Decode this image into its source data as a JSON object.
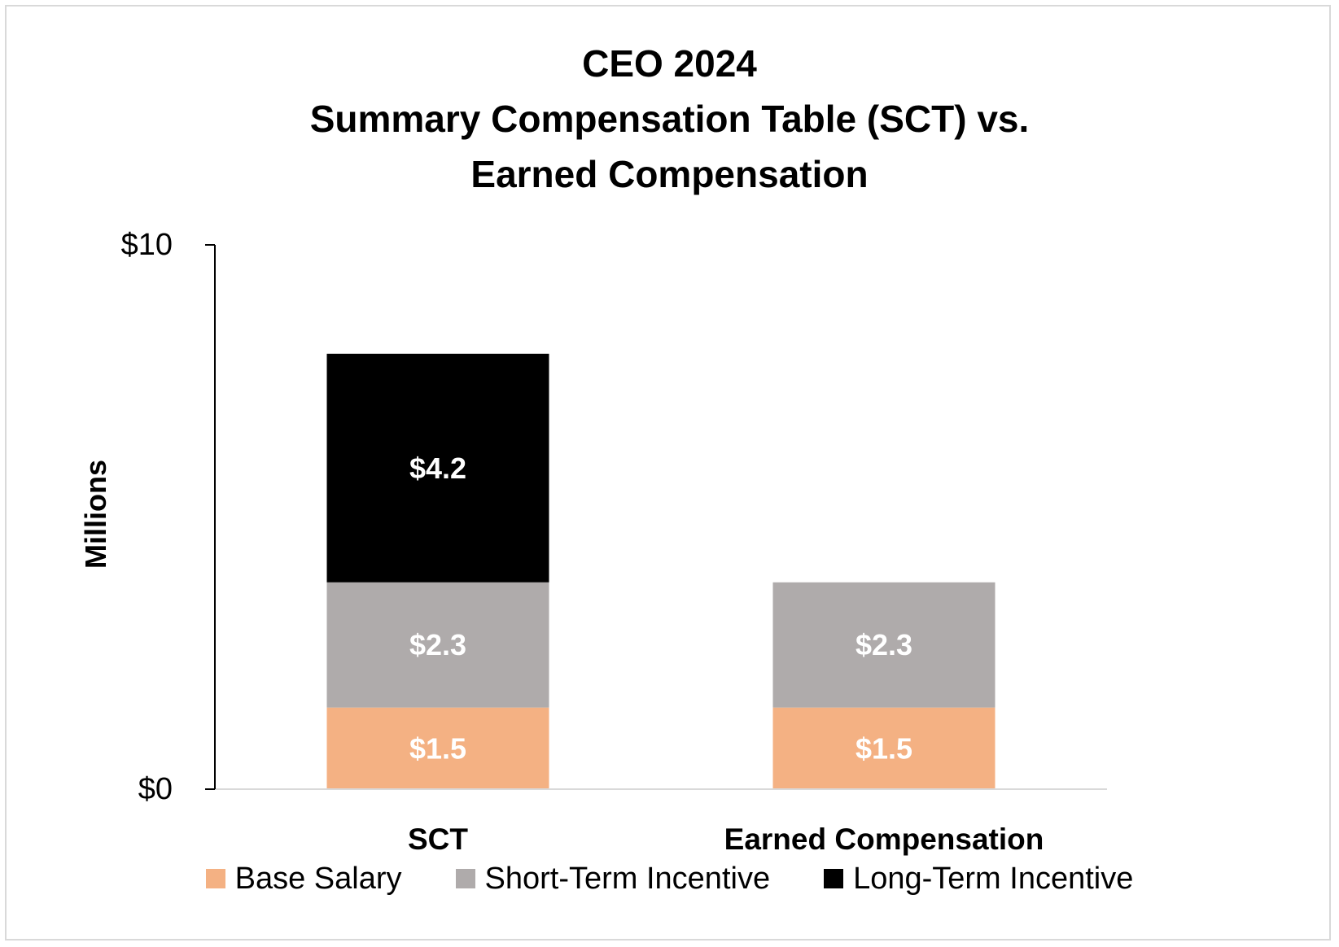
{
  "chart_data": {
    "type": "bar",
    "stacked": true,
    "title_lines": [
      "CEO 2024",
      "Summary Compensation Table (SCT) vs.",
      "Earned Compensation"
    ],
    "ylabel": "Millions",
    "xlabel": "",
    "ylim": [
      0,
      10
    ],
    "yticks": [
      {
        "value": 0,
        "label": "$0"
      },
      {
        "value": 10,
        "label": "$10"
      }
    ],
    "categories": [
      "SCT",
      "Earned Compensation"
    ],
    "series": [
      {
        "name": "Base Salary",
        "color": "#f4b183",
        "values": [
          1.5,
          1.5
        ],
        "labels": [
          "$1.5",
          "$1.5"
        ]
      },
      {
        "name": "Short-Term Incentive",
        "color": "#afabab",
        "values": [
          2.3,
          2.3
        ],
        "labels": [
          "$2.3",
          "$2.3"
        ]
      },
      {
        "name": "Long-Term Incentive",
        "color": "#000000",
        "values": [
          4.2,
          0
        ],
        "labels": [
          "$4.2",
          ""
        ]
      }
    ],
    "grid": false,
    "legend_position": "bottom"
  }
}
